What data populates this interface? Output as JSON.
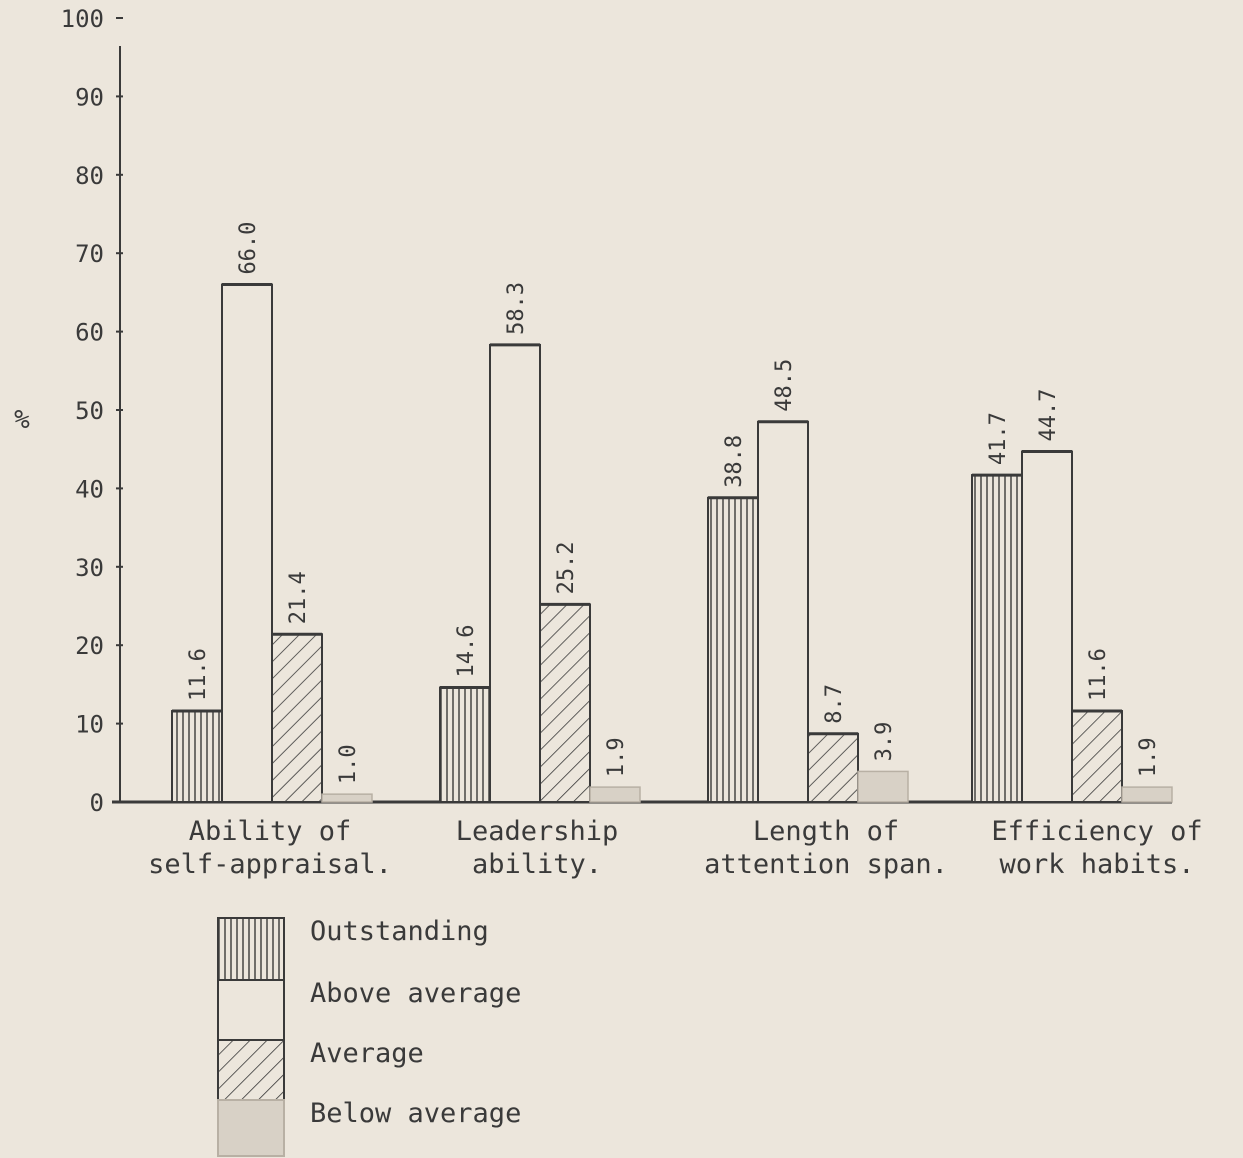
{
  "chart_data": {
    "type": "bar",
    "title": "",
    "ylabel": "%",
    "xlabel": "",
    "ylim": [
      0,
      100
    ],
    "yticks": [
      "0",
      "10",
      "20",
      "30",
      "40",
      "50",
      "60",
      "70",
      "80",
      "90",
      "100"
    ],
    "categories": [
      [
        "Ability of",
        "self-appraisal."
      ],
      [
        "Leadership",
        "ability."
      ],
      [
        "Length of",
        "attention span."
      ],
      [
        "Efficiency of",
        "work habits."
      ]
    ],
    "series": [
      {
        "name": "Outstanding",
        "pattern": "vertical-lines",
        "values": [
          11.6,
          14.6,
          38.8,
          41.7
        ],
        "labels": [
          "11.6",
          "14.6",
          "38.8",
          "41.7"
        ]
      },
      {
        "name": "Above average",
        "pattern": "plain",
        "values": [
          66.0,
          58.3,
          48.5,
          44.7
        ],
        "labels": [
          "66.0",
          "58.3",
          "48.5",
          "44.7"
        ]
      },
      {
        "name": "Average",
        "pattern": "diagonal-hatch",
        "values": [
          21.4,
          25.2,
          8.7,
          11.6
        ],
        "labels": [
          "21.4",
          "25.2",
          "8.7",
          "11.6"
        ]
      },
      {
        "name": "Below average",
        "pattern": "grey-fill",
        "values": [
          1.0,
          1.9,
          3.9,
          1.9
        ],
        "labels": [
          "1.0",
          "1.9",
          "3.9",
          "1.9"
        ]
      }
    ],
    "legend_position": "bottom-left",
    "grid": false,
    "colors": {
      "background": "#ece6dc",
      "ink": "#3a3a3a",
      "below_average_fill": "#d8d1c6"
    }
  }
}
